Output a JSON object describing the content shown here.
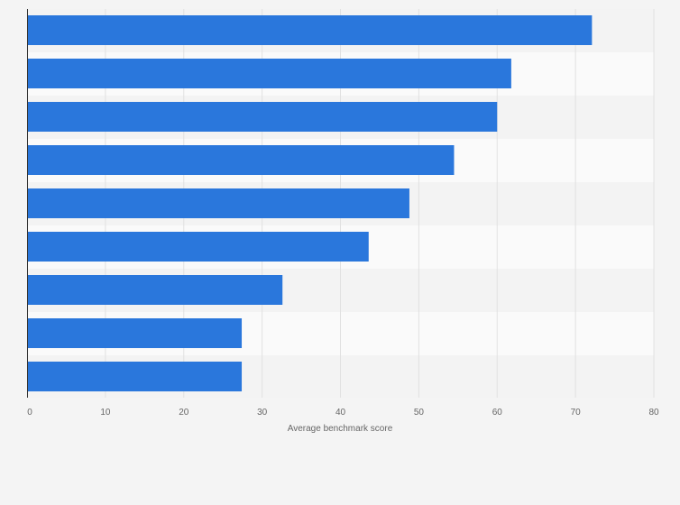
{
  "chart_data": {
    "type": "bar",
    "orientation": "horizontal",
    "categories": [
      "",
      "",
      "",
      "",
      "",
      "",
      "",
      "",
      ""
    ],
    "values": [
      72.1,
      61.8,
      60.0,
      54.5,
      48.8,
      43.6,
      32.6,
      27.4,
      27.4
    ],
    "title": "",
    "xlabel": "Average benchmark score",
    "ylabel": "",
    "xlim": [
      0,
      80
    ],
    "xticks": [
      0,
      10,
      20,
      30,
      40,
      50,
      60,
      70,
      80
    ],
    "grid": true,
    "legend": "none"
  },
  "colors": {
    "bar": "#2a77dc",
    "band_odd": "#f3f3f3",
    "band_even": "#fafafa",
    "grid": "#e1e1e1",
    "axis": "#333333"
  }
}
